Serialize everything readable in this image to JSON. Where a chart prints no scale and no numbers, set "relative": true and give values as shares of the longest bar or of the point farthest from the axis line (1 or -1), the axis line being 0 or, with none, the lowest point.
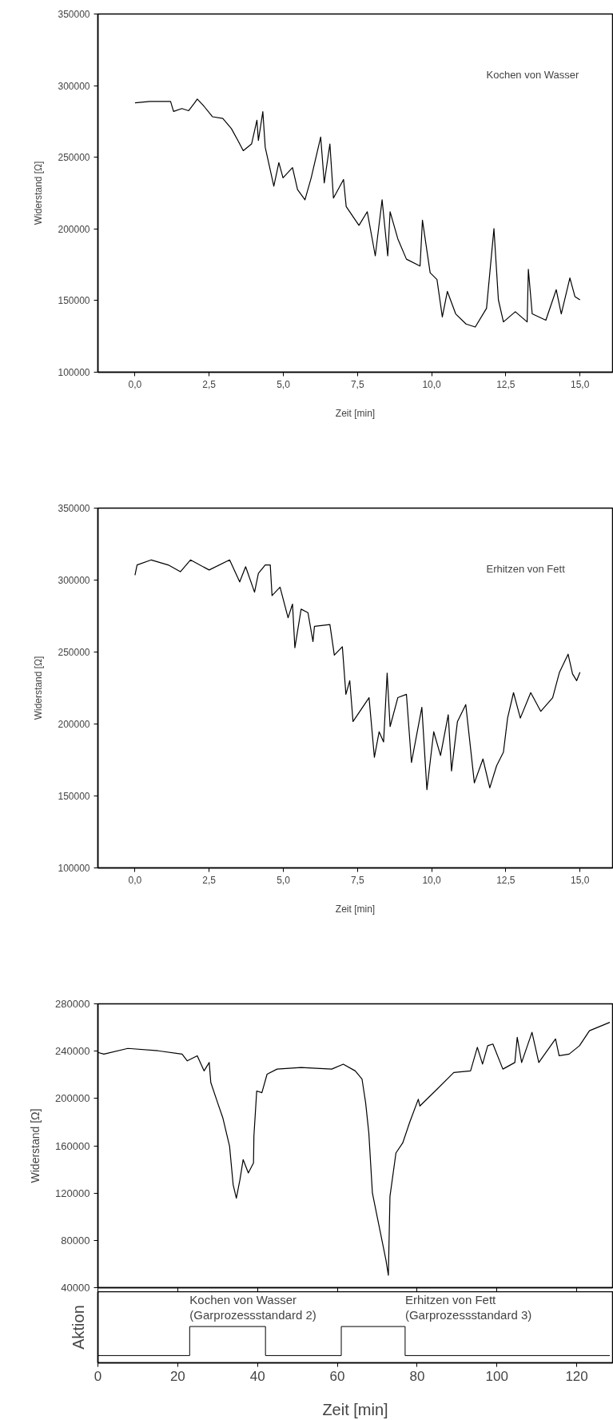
{
  "chart_data": [
    {
      "type": "line",
      "xlabel": "Zeit [min]",
      "ylabel": "Widerstand [Ω]",
      "annotations": [
        "Kochen von Wasser"
      ],
      "xlim": [
        -1.25,
        16.1
      ],
      "ylim": [
        100000,
        350000
      ],
      "xticks": [
        {
          "value": 0,
          "label": "0,0"
        },
        {
          "value": 2.5,
          "label": "2,5"
        },
        {
          "value": 5,
          "label": "5,0"
        },
        {
          "value": 7.5,
          "label": "7,5"
        },
        {
          "value": 10,
          "label": "10,0"
        },
        {
          "value": 12.5,
          "label": "12,5"
        },
        {
          "value": 15,
          "label": "15,0"
        }
      ],
      "yticks": [
        100000,
        150000,
        200000,
        250000,
        300000,
        350000
      ],
      "series": [
        {
          "color": "#000000",
          "x": [
            0,
            0.5,
            1.2,
            1.3,
            1.58,
            1.81,
            2.0,
            2.1,
            2.29,
            2.61,
            2.96,
            3.25,
            3.47,
            3.65,
            3.93,
            4.11,
            4.16,
            4.31,
            4.39,
            4.68,
            4.85,
            4.99,
            5.31,
            5.48,
            5.73,
            5.94,
            6.26,
            6.38,
            6.57,
            6.69,
            7.03,
            7.12,
            7.55,
            7.83,
            8.1,
            8.33,
            8.52,
            8.6,
            8.86,
            9.15,
            9.61,
            9.69,
            9.95,
            10.18,
            10.36,
            10.53,
            10.81,
            11.16,
            11.47,
            11.85,
            12.02,
            12.1,
            12.25,
            12.42,
            12.82,
            13.22,
            13.26,
            13.39,
            13.85,
            14.2,
            14.37,
            14.66,
            14.83,
            15.0
          ],
          "values": [
            288000,
            289000,
            289000,
            282000,
            284000,
            282500,
            287700,
            290600,
            286500,
            278300,
            277100,
            270000,
            261700,
            254600,
            259300,
            275900,
            261700,
            281800,
            257000,
            229800,
            246300,
            235700,
            242800,
            227400,
            220300,
            235700,
            264100,
            232100,
            259300,
            221500,
            234500,
            215600,
            202500,
            212000,
            181200,
            220300,
            181200,
            212000,
            193100,
            178900,
            174100,
            206100,
            169400,
            164700,
            138600,
            156400,
            140700,
            133600,
            131500,
            144600,
            182400,
            200200,
            150500,
            135100,
            142200,
            135100,
            171800,
            140700,
            136300,
            157600,
            140700,
            165800,
            152800,
            150500
          ]
        }
      ]
    },
    {
      "type": "line",
      "xlabel": "Zeit [min]",
      "ylabel": "Widerstand [Ω]",
      "annotations": [
        "Erhitzen von Fett"
      ],
      "xlim": [
        -1.25,
        16.1
      ],
      "ylim": [
        100000,
        350000
      ],
      "xticks": [
        {
          "value": 0,
          "label": "0,0"
        },
        {
          "value": 2.5,
          "label": "2,5"
        },
        {
          "value": 5,
          "label": "5,0"
        },
        {
          "value": 7.5,
          "label": "7,5"
        },
        {
          "value": 10,
          "label": "10,0"
        },
        {
          "value": 12.5,
          "label": "12,5"
        },
        {
          "value": 15,
          "label": "15,0"
        }
      ],
      "yticks": [
        100000,
        150000,
        200000,
        250000,
        300000,
        350000
      ],
      "series": [
        {
          "color": "#000000",
          "x": [
            0,
            0.07,
            0.55,
            1.12,
            1.53,
            1.87,
            2.5,
            3.19,
            3.53,
            3.73,
            4.03,
            4.16,
            4.39,
            4.56,
            4.62,
            4.89,
            5.16,
            5.31,
            5.39,
            5.6,
            5.83,
            6.0,
            6.05,
            6.57,
            6.72,
            6.99,
            7.11,
            7.24,
            7.35,
            7.89,
            8.07,
            8.23,
            8.38,
            8.5,
            8.6,
            8.86,
            9.15,
            9.32,
            9.67,
            9.84,
            10.07,
            10.3,
            10.56,
            10.67,
            10.87,
            11.15,
            11.44,
            11.73,
            11.96,
            12.19,
            12.42,
            12.56,
            12.76,
            12.99,
            13.34,
            13.68,
            14.08,
            14.31,
            14.6,
            14.75,
            14.89,
            15.0
          ],
          "values": [
            303400,
            310500,
            314000,
            310500,
            305800,
            314000,
            307000,
            314000,
            298700,
            309300,
            291600,
            304600,
            310500,
            310500,
            289200,
            295100,
            273800,
            283300,
            253000,
            279800,
            277400,
            257300,
            267900,
            269100,
            247800,
            253700,
            220600,
            230100,
            201700,
            218300,
            176900,
            194600,
            187500,
            235300,
            198200,
            218300,
            220600,
            173300,
            211600,
            154400,
            194600,
            178100,
            206400,
            167400,
            201700,
            213500,
            159100,
            175700,
            155600,
            171000,
            180400,
            204100,
            221800,
            204100,
            221800,
            208800,
            218300,
            236000,
            248500,
            234800,
            230100,
            236000
          ]
        }
      ]
    },
    {
      "type": "line",
      "ylabel": "Widerstand [Ω]",
      "tick_labels": "y",
      "xlim": [
        0,
        129
      ],
      "ylim": [
        40000,
        280000
      ],
      "xticks": [
        0,
        20,
        40,
        60,
        80,
        100,
        120
      ],
      "yticks": [
        40000,
        80000,
        120000,
        160000,
        200000,
        240000,
        280000
      ],
      "series": [
        {
          "color": "#000000",
          "x": [
            0,
            1.5,
            7.5,
            15.1,
            21.1,
            22.4,
            24.9,
            26.6,
            27.9,
            28.3,
            30.0,
            31.3,
            33.0,
            33.9,
            34.7,
            35.6,
            36.4,
            37.7,
            39.0,
            39.1,
            39.8,
            41.1,
            42.4,
            44.9,
            50.9,
            58.6,
            61.5,
            64.5,
            66.2,
            67.1,
            67.9,
            68.8,
            70.5,
            72.2,
            72.8,
            73.2,
            74.7,
            76.4,
            78.1,
            80.3,
            80.7,
            85.0,
            89.2,
            93.4,
            95.1,
            96.4,
            97.7,
            99.0,
            101.5,
            104.5,
            105.1,
            106.2,
            108.8,
            110.5,
            114.7,
            115.6,
            118.1,
            120.7,
            123.2,
            128.3
          ],
          "values": [
            238900,
            237500,
            242300,
            240300,
            237500,
            231800,
            236100,
            223300,
            230400,
            213400,
            196400,
            183700,
            159600,
            127000,
            115700,
            131300,
            148300,
            137000,
            145400,
            168100,
            206300,
            204900,
            220500,
            224800,
            226200,
            224800,
            229000,
            223300,
            216300,
            196400,
            170900,
            120000,
            91600,
            63300,
            50500,
            117100,
            153900,
            162400,
            179400,
            199300,
            193600,
            207800,
            221900,
            223300,
            243200,
            229000,
            244600,
            246000,
            224800,
            230400,
            251700,
            230400,
            255900,
            230400,
            250300,
            236100,
            237500,
            244600,
            257300,
            264400
          ]
        }
      ]
    },
    {
      "type": "step",
      "relative": true,
      "xlabel": "Zeit [min]",
      "ylabel": "Aktion",
      "tick_labels": "x",
      "annotations": [
        {
          "text": "Kochen von Wasser\n(Garprozessstandard 2)",
          "x": 23,
          "y": 1
        },
        {
          "text": "Erhitzen von Fett\n(Garprozessstandard 3)",
          "x": 77,
          "y": 1
        }
      ],
      "xlim": [
        0,
        129
      ],
      "xticks": [
        0,
        20,
        40,
        60,
        80,
        100,
        120
      ],
      "series": [
        {
          "color": "#000000",
          "x": [
            0,
            23,
            42,
            61,
            77,
            128.3
          ],
          "values": [
            0,
            1,
            0,
            1,
            0,
            0
          ]
        }
      ]
    }
  ]
}
